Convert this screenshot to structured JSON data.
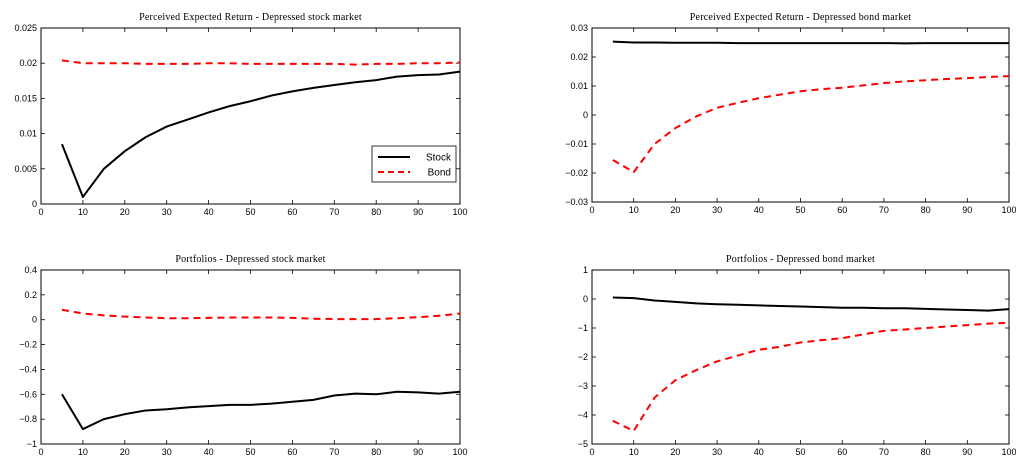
{
  "chart_data": [
    {
      "type": "line",
      "title": "Perceived Expected Return - Depressed stock market",
      "xlim": [
        0,
        100
      ],
      "ylim": [
        0,
        0.025
      ],
      "xticks": [
        0,
        10,
        20,
        30,
        40,
        50,
        60,
        70,
        80,
        90,
        100
      ],
      "yticks": [
        0,
        0.005,
        0.01,
        0.015,
        0.02,
        0.025
      ],
      "yticklabels": [
        "0",
        "0.005",
        "0.01",
        "0.015",
        "0.02",
        "0.025"
      ],
      "grid": false,
      "legend": {
        "location": "lower-right",
        "entries": [
          "Stock",
          "Bond"
        ]
      },
      "series": [
        {
          "name": "Stock",
          "color": "#000000",
          "style": "solid",
          "x": [
            5,
            10,
            15,
            20,
            25,
            30,
            35,
            40,
            45,
            50,
            55,
            60,
            65,
            70,
            75,
            80,
            85,
            90,
            95,
            100
          ],
          "values": [
            0.0085,
            0.001,
            0.005,
            0.0075,
            0.0095,
            0.011,
            0.012,
            0.013,
            0.0139,
            0.0146,
            0.0154,
            0.016,
            0.0165,
            0.0169,
            0.0173,
            0.0176,
            0.0181,
            0.0183,
            0.0184,
            0.0188
          ]
        },
        {
          "name": "Bond",
          "color": "#ff0000",
          "style": "dashed",
          "x": [
            5,
            10,
            15,
            20,
            25,
            30,
            35,
            40,
            45,
            50,
            55,
            60,
            65,
            70,
            75,
            80,
            85,
            90,
            95,
            100
          ],
          "values": [
            0.0204,
            0.02,
            0.02,
            0.02,
            0.0199,
            0.0199,
            0.0199,
            0.02,
            0.02,
            0.0199,
            0.0199,
            0.0199,
            0.0199,
            0.0199,
            0.0198,
            0.0199,
            0.0199,
            0.02,
            0.02,
            0.0201
          ]
        }
      ]
    },
    {
      "type": "line",
      "title": "Perceived Expected Return - Depressed bond market",
      "xlim": [
        0,
        100
      ],
      "ylim": [
        -0.03,
        0.03
      ],
      "xticks": [
        0,
        10,
        20,
        30,
        40,
        50,
        60,
        70,
        80,
        90,
        100
      ],
      "yticks": [
        -0.03,
        -0.02,
        -0.01,
        0,
        0.01,
        0.02,
        0.03
      ],
      "yticklabels": [
        "−0.03",
        "−0.02",
        "−0.01",
        "0",
        "0.01",
        "0.02",
        "0.03"
      ],
      "grid": false,
      "series": [
        {
          "color": "#000000",
          "style": "solid",
          "x": [
            5,
            10,
            15,
            20,
            25,
            30,
            35,
            40,
            45,
            50,
            55,
            60,
            65,
            70,
            75,
            80,
            85,
            90,
            95,
            100
          ],
          "values": [
            0.0253,
            0.025,
            0.025,
            0.0249,
            0.0249,
            0.0249,
            0.0248,
            0.0248,
            0.0248,
            0.0248,
            0.0248,
            0.0248,
            0.0248,
            0.0248,
            0.0247,
            0.0248,
            0.0248,
            0.0248,
            0.0248,
            0.0248
          ]
        },
        {
          "color": "#ff0000",
          "style": "dashed",
          "x": [
            5,
            10,
            15,
            20,
            25,
            30,
            35,
            40,
            45,
            50,
            55,
            60,
            65,
            70,
            75,
            80,
            85,
            90,
            95,
            100
          ],
          "values": [
            -0.0155,
            -0.0197,
            -0.01,
            -0.0045,
            -0.0005,
            0.0025,
            0.0042,
            0.0058,
            0.007,
            0.0082,
            0.0089,
            0.0094,
            0.0102,
            0.011,
            0.0116,
            0.012,
            0.0124,
            0.0127,
            0.0131,
            0.0134
          ]
        }
      ]
    },
    {
      "type": "line",
      "title": "Portfolios - Depressed stock market",
      "xlim": [
        0,
        100
      ],
      "ylim": [
        -1,
        0.4
      ],
      "xticks": [
        0,
        10,
        20,
        30,
        40,
        50,
        60,
        70,
        80,
        90,
        100
      ],
      "yticks": [
        -1,
        -0.8,
        -0.6,
        -0.4,
        -0.2,
        0,
        0.2,
        0.4
      ],
      "yticklabels": [
        "−1",
        "−0.8",
        "−0.6",
        "−0.4",
        "−0.2",
        "0",
        "0.2",
        "0.4"
      ],
      "grid": false,
      "series": [
        {
          "color": "#000000",
          "style": "solid",
          "x": [
            5,
            10,
            15,
            20,
            25,
            30,
            35,
            40,
            45,
            50,
            55,
            60,
            65,
            70,
            75,
            80,
            85,
            90,
            95,
            100
          ],
          "values": [
            -0.6,
            -0.88,
            -0.8,
            -0.76,
            -0.73,
            -0.72,
            -0.705,
            -0.695,
            -0.685,
            -0.685,
            -0.675,
            -0.66,
            -0.645,
            -0.61,
            -0.595,
            -0.6,
            -0.58,
            -0.585,
            -0.595,
            -0.58
          ]
        },
        {
          "color": "#ff0000",
          "style": "dashed",
          "x": [
            5,
            10,
            15,
            20,
            25,
            30,
            35,
            40,
            45,
            50,
            55,
            60,
            65,
            70,
            75,
            80,
            85,
            90,
            95,
            100
          ],
          "values": [
            0.08,
            0.05,
            0.035,
            0.025,
            0.018,
            0.012,
            0.012,
            0.015,
            0.018,
            0.018,
            0.018,
            0.015,
            0.008,
            0.005,
            0.005,
            0.005,
            0.012,
            0.02,
            0.032,
            0.05
          ]
        }
      ]
    },
    {
      "type": "line",
      "title": "Portfolios - Depressed bond market",
      "xlim": [
        0,
        100
      ],
      "ylim": [
        -5,
        1
      ],
      "xticks": [
        0,
        10,
        20,
        30,
        40,
        50,
        60,
        70,
        80,
        90,
        100
      ],
      "yticks": [
        -5,
        -4,
        -3,
        -2,
        -1,
        0,
        1
      ],
      "yticklabels": [
        "−5",
        "−4",
        "−3",
        "−2",
        "−1",
        "0",
        "1"
      ],
      "grid": false,
      "series": [
        {
          "color": "#000000",
          "style": "solid",
          "x": [
            5,
            10,
            15,
            20,
            25,
            30,
            35,
            40,
            45,
            50,
            55,
            60,
            65,
            70,
            75,
            80,
            85,
            90,
            95,
            100
          ],
          "values": [
            0.05,
            0.03,
            -0.05,
            -0.1,
            -0.15,
            -0.18,
            -0.2,
            -0.22,
            -0.24,
            -0.26,
            -0.28,
            -0.3,
            -0.3,
            -0.32,
            -0.32,
            -0.34,
            -0.36,
            -0.38,
            -0.4,
            -0.35
          ]
        },
        {
          "color": "#ff0000",
          "style": "dashed",
          "x": [
            5,
            10,
            15,
            20,
            25,
            30,
            35,
            40,
            45,
            50,
            55,
            60,
            65,
            70,
            75,
            80,
            85,
            90,
            95,
            100
          ],
          "values": [
            -4.2,
            -4.55,
            -3.4,
            -2.8,
            -2.45,
            -2.15,
            -1.95,
            -1.75,
            -1.65,
            -1.5,
            -1.42,
            -1.35,
            -1.22,
            -1.1,
            -1.05,
            -1.0,
            -0.95,
            -0.9,
            -0.85,
            -0.82
          ]
        }
      ]
    }
  ]
}
